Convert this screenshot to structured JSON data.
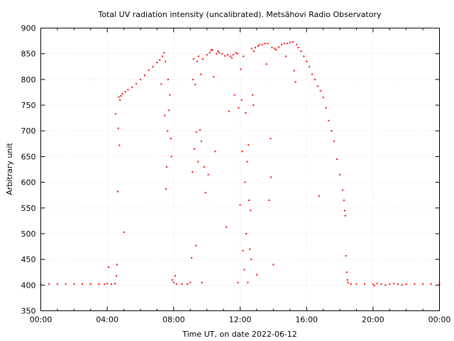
{
  "chart_data": {
    "type": "scatter",
    "title": "Total UV radiation intensity (uncalibrated). Metsähovi Radio Observatory",
    "xlabel": "Time UT, on date 2022-06-12",
    "ylabel": "Arbitrary unit",
    "xlim": [
      "00:00",
      "24:00"
    ],
    "ylim": [
      350,
      900
    ],
    "x_tick_labels": [
      "00:00",
      "04:00",
      "08:00",
      "12:00",
      "16:00",
      "20:00",
      "00:00"
    ],
    "y_tick_labels": [
      "350",
      "400",
      "450",
      "500",
      "550",
      "600",
      "650",
      "700",
      "750",
      "800",
      "850",
      "900"
    ],
    "grid": true,
    "marker_color": "#ff0000",
    "series": [
      {
        "points": [
          [
            "00:00",
            402
          ],
          [
            "00:30",
            402
          ],
          [
            "01:00",
            402
          ],
          [
            "01:30",
            402
          ],
          [
            "02:00",
            402
          ],
          [
            "02:30",
            402
          ],
          [
            "03:00",
            402
          ],
          [
            "03:30",
            402
          ],
          [
            "03:50",
            402
          ],
          [
            "04:00",
            403
          ],
          [
            "04:05",
            435
          ],
          [
            "04:15",
            402
          ],
          [
            "04:28",
            403
          ],
          [
            "04:30",
            733
          ],
          [
            "04:33",
            418
          ],
          [
            "04:35",
            440
          ],
          [
            "04:38",
            582
          ],
          [
            "04:40",
            705
          ],
          [
            "04:42",
            766
          ],
          [
            "04:44",
            672
          ],
          [
            "04:46",
            760
          ],
          [
            "04:50",
            768
          ],
          [
            "04:55",
            772
          ],
          [
            "05:00",
            503
          ],
          [
            "05:05",
            776
          ],
          [
            "05:15",
            780
          ],
          [
            "05:30",
            785
          ],
          [
            "05:45",
            792
          ],
          [
            "06:00",
            800
          ],
          [
            "06:15",
            808
          ],
          [
            "06:30",
            818
          ],
          [
            "06:45",
            825
          ],
          [
            "07:00",
            833
          ],
          [
            "07:10",
            838
          ],
          [
            "07:15",
            791
          ],
          [
            "07:20",
            845
          ],
          [
            "07:25",
            852
          ],
          [
            "07:28",
            730
          ],
          [
            "07:30",
            835
          ],
          [
            "07:32",
            587
          ],
          [
            "07:35",
            630
          ],
          [
            "07:38",
            700
          ],
          [
            "07:40",
            800
          ],
          [
            "07:43",
            740
          ],
          [
            "07:46",
            770
          ],
          [
            "07:50",
            685
          ],
          [
            "07:52",
            650
          ],
          [
            "07:55",
            410
          ],
          [
            "08:00",
            405
          ],
          [
            "08:05",
            418
          ],
          [
            "08:10",
            402
          ],
          [
            "08:30",
            402
          ],
          [
            "08:50",
            402
          ],
          [
            "09:00",
            405
          ],
          [
            "09:05",
            453
          ],
          [
            "09:08",
            620
          ],
          [
            "09:10",
            800
          ],
          [
            "09:12",
            840
          ],
          [
            "09:15",
            665
          ],
          [
            "09:18",
            790
          ],
          [
            "09:20",
            477
          ],
          [
            "09:22",
            698
          ],
          [
            "09:25",
            835
          ],
          [
            "09:28",
            640
          ],
          [
            "09:30",
            845
          ],
          [
            "09:35",
            702
          ],
          [
            "09:38",
            810
          ],
          [
            "09:40",
            680
          ],
          [
            "09:42",
            405
          ],
          [
            "09:45",
            840
          ],
          [
            "09:50",
            630
          ],
          [
            "09:55",
            580
          ],
          [
            "10:00",
            848
          ],
          [
            "10:05",
            615
          ],
          [
            "10:10",
            852
          ],
          [
            "10:15",
            857
          ],
          [
            "10:20",
            858
          ],
          [
            "10:25",
            805
          ],
          [
            "10:30",
            660
          ],
          [
            "10:35",
            850
          ],
          [
            "10:40",
            855
          ],
          [
            "10:45",
            852
          ],
          [
            "10:55",
            850
          ],
          [
            "11:05",
            846
          ],
          [
            "11:10",
            513
          ],
          [
            "11:15",
            848
          ],
          [
            "11:20",
            738
          ],
          [
            "11:25",
            845
          ],
          [
            "11:30",
            842
          ],
          [
            "11:35",
            848
          ],
          [
            "11:40",
            770
          ],
          [
            "11:45",
            852
          ],
          [
            "11:50",
            850
          ],
          [
            "11:52",
            405
          ],
          [
            "11:55",
            745
          ],
          [
            "12:00",
            556
          ],
          [
            "12:02",
            820
          ],
          [
            "12:05",
            760
          ],
          [
            "12:08",
            660
          ],
          [
            "12:10",
            467
          ],
          [
            "12:12",
            845
          ],
          [
            "12:15",
            430
          ],
          [
            "12:18",
            600
          ],
          [
            "12:20",
            735
          ],
          [
            "12:22",
            500
          ],
          [
            "12:25",
            640
          ],
          [
            "12:28",
            405
          ],
          [
            "12:30",
            673
          ],
          [
            "12:32",
            565
          ],
          [
            "12:35",
            470
          ],
          [
            "12:38",
            545
          ],
          [
            "12:40",
            450
          ],
          [
            "12:42",
            860
          ],
          [
            "12:45",
            770
          ],
          [
            "12:48",
            750
          ],
          [
            "12:50",
            855
          ],
          [
            "12:55",
            862
          ],
          [
            "13:00",
            420
          ],
          [
            "13:05",
            865
          ],
          [
            "13:10",
            868
          ],
          [
            "13:20",
            868
          ],
          [
            "13:30",
            870
          ],
          [
            "13:35",
            830
          ],
          [
            "13:40",
            870
          ],
          [
            "13:45",
            565
          ],
          [
            "13:50",
            685
          ],
          [
            "13:52",
            610
          ],
          [
            "13:55",
            862
          ],
          [
            "14:00",
            440
          ],
          [
            "14:05",
            860
          ],
          [
            "14:10",
            858
          ],
          [
            "14:20",
            863
          ],
          [
            "14:30",
            868
          ],
          [
            "14:40",
            870
          ],
          [
            "14:45",
            845
          ],
          [
            "14:50",
            870
          ],
          [
            "15:00",
            872
          ],
          [
            "15:10",
            873
          ],
          [
            "15:15",
            817
          ],
          [
            "15:20",
            795
          ],
          [
            "15:25",
            868
          ],
          [
            "15:30",
            862
          ],
          [
            "15:40",
            855
          ],
          [
            "15:50",
            845
          ],
          [
            "16:00",
            835
          ],
          [
            "16:10",
            825
          ],
          [
            "16:20",
            810
          ],
          [
            "16:30",
            800
          ],
          [
            "16:40",
            787
          ],
          [
            "16:45",
            573
          ],
          [
            "16:50",
            778
          ],
          [
            "17:00",
            765
          ],
          [
            "17:10",
            745
          ],
          [
            "17:20",
            720
          ],
          [
            "17:30",
            700
          ],
          [
            "17:40",
            680
          ],
          [
            "17:50",
            645
          ],
          [
            "18:00",
            615
          ],
          [
            "18:10",
            585
          ],
          [
            "18:15",
            565
          ],
          [
            "18:18",
            545
          ],
          [
            "18:20",
            535
          ],
          [
            "18:22",
            457
          ],
          [
            "18:25",
            425
          ],
          [
            "18:28",
            410
          ],
          [
            "18:30",
            405
          ],
          [
            "18:40",
            402
          ],
          [
            "19:00",
            402
          ],
          [
            "19:30",
            402
          ],
          [
            "20:00",
            402
          ],
          [
            "20:05",
            399
          ],
          [
            "20:15",
            403
          ],
          [
            "20:30",
            402
          ],
          [
            "20:45",
            400
          ],
          [
            "21:00",
            402
          ],
          [
            "21:15",
            403
          ],
          [
            "21:30",
            402
          ],
          [
            "21:45",
            400
          ],
          [
            "22:00",
            402
          ],
          [
            "22:30",
            402
          ],
          [
            "23:00",
            402
          ],
          [
            "23:30",
            402
          ],
          [
            "24:00",
            402
          ]
        ]
      }
    ]
  }
}
